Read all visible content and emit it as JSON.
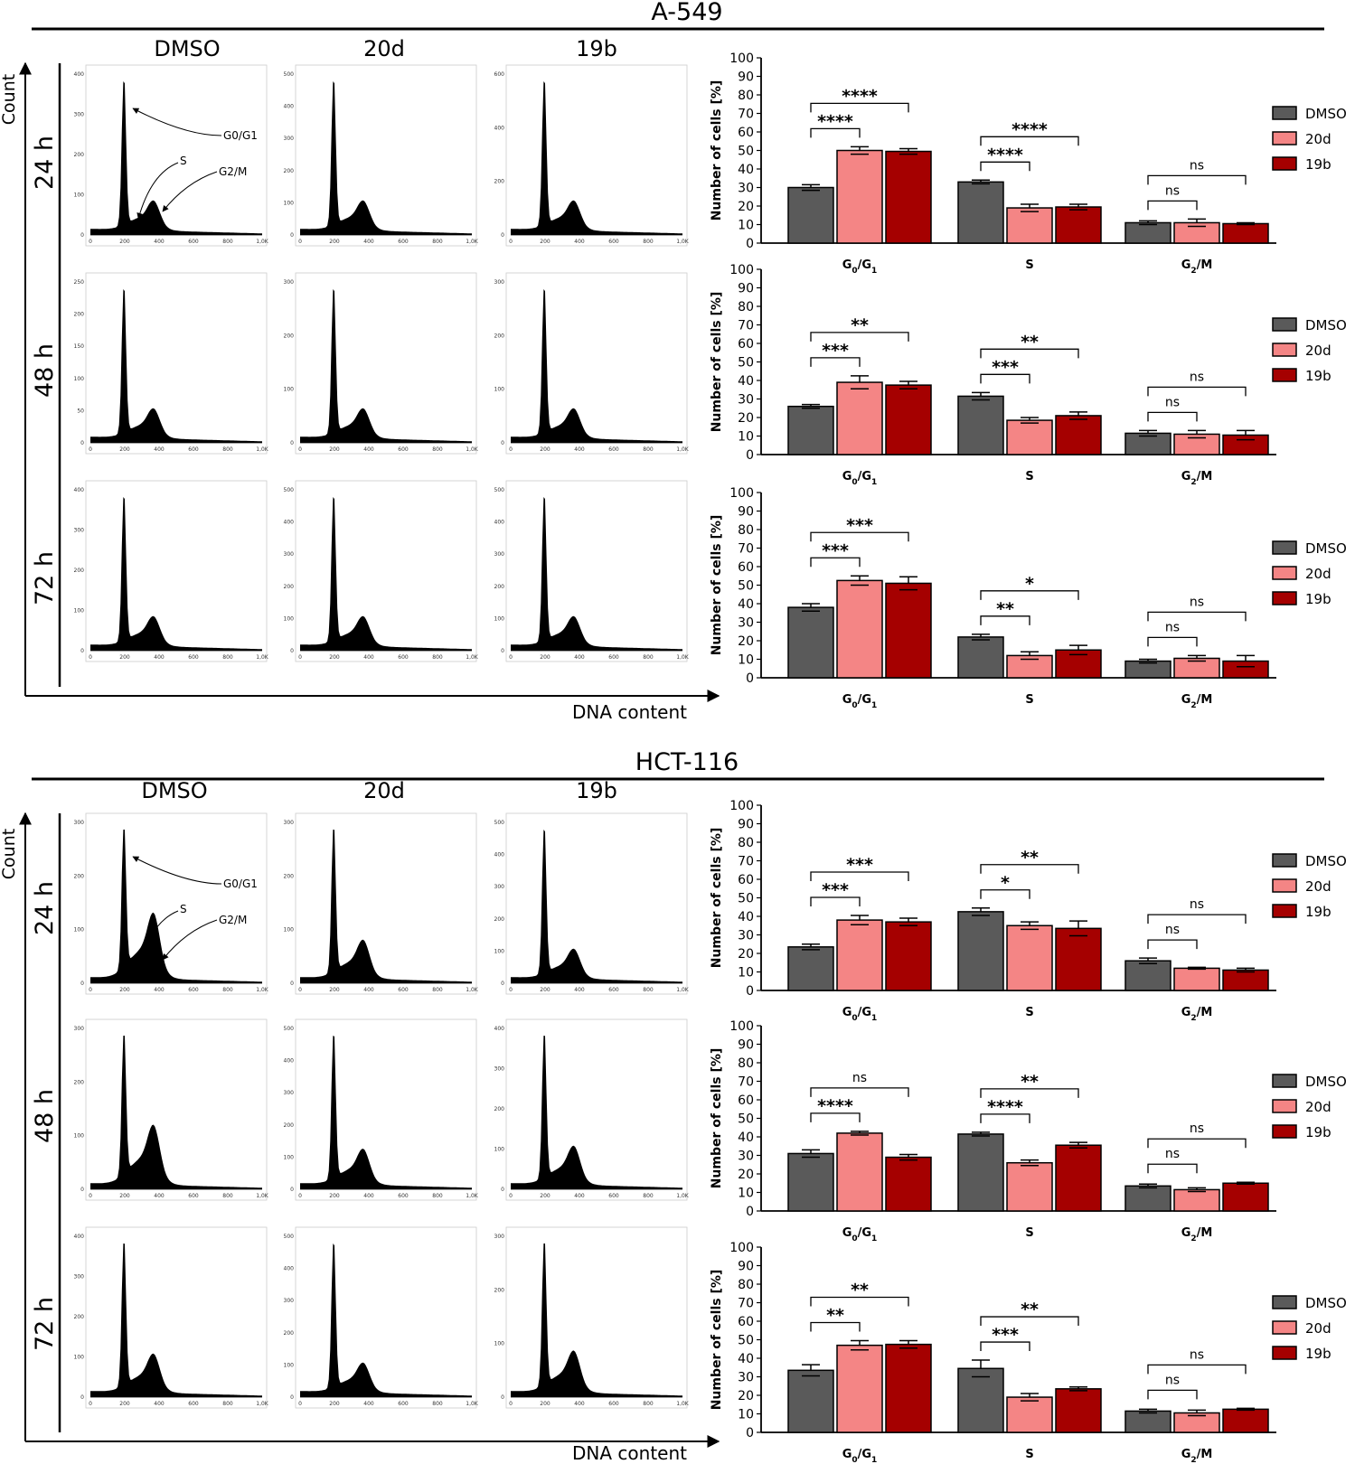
{
  "colors": {
    "DMSO": "#5a5a5a",
    "20d": "#f48585",
    "19b": "#a50000"
  },
  "histo_axis": {
    "y_label": "Count",
    "x_label": "DNA content",
    "x_ticks": [
      "0",
      "200",
      "400",
      "600",
      "800",
      "1,0K"
    ],
    "peak_labels": {
      "g0g1": "G0/G1",
      "s": "S",
      "g2m": "G2/M"
    }
  },
  "sections": [
    {
      "title": "A-549",
      "columns": [
        "DMSO",
        "20d",
        "19b"
      ],
      "rows": [
        {
          "time": "24 h",
          "yticks": [
            [
              "0",
              "100",
              "200",
              "300",
              "400"
            ],
            [
              "0",
              "100",
              "200",
              "300",
              "400",
              "500"
            ],
            [
              "0",
              "200",
              "400",
              "600"
            ]
          ],
          "g2_scale": [
            1.0,
            1.0,
            1.0
          ]
        },
        {
          "time": "48 h",
          "yticks": [
            [
              "0",
              "50",
              "100",
              "150",
              "200",
              "250"
            ],
            [
              "0",
              "100",
              "200",
              "300"
            ],
            [
              "0",
              "100",
              "200",
              "300"
            ]
          ],
          "g2_scale": [
            1.0,
            1.0,
            1.0
          ]
        },
        {
          "time": "72 h",
          "yticks": [
            [
              "0",
              "100",
              "200",
              "300",
              "400"
            ],
            [
              "0",
              "100",
              "200",
              "300",
              "400",
              "500"
            ],
            [
              "0",
              "100",
              "200",
              "300",
              "400",
              "500"
            ]
          ],
          "g2_scale": [
            1.0,
            1.0,
            1.0
          ]
        }
      ]
    },
    {
      "title": "HCT-116",
      "columns": [
        "DMSO",
        "20d",
        "19b"
      ],
      "rows": [
        {
          "time": "24 h",
          "yticks": [
            [
              "0",
              "100",
              "200",
              "300"
            ],
            [
              "0",
              "100",
              "200",
              "300"
            ],
            [
              "0",
              "100",
              "200",
              "300",
              "400",
              "500"
            ]
          ],
          "g2_scale": [
            2.2,
            1.3,
            1.0
          ]
        },
        {
          "time": "48 h",
          "yticks": [
            [
              "0",
              "100",
              "200",
              "300"
            ],
            [
              "0",
              "100",
              "200",
              "300",
              "400",
              "500"
            ],
            [
              "0",
              "100",
              "200",
              "300",
              "400"
            ]
          ],
          "g2_scale": [
            2.0,
            1.2,
            1.3
          ]
        },
        {
          "time": "72 h",
          "yticks": [
            [
              "0",
              "100",
              "200",
              "300",
              "400"
            ],
            [
              "0",
              "100",
              "200",
              "300",
              "400",
              "500"
            ],
            [
              "0",
              "100",
              "200",
              "300"
            ]
          ],
          "g2_scale": [
            1.3,
            1.0,
            1.4
          ]
        }
      ]
    }
  ],
  "chart_data": [
    {
      "id": "a549_24h",
      "type": "bar",
      "ylabel": "Number of cells [%]",
      "ylim": [
        0,
        100
      ],
      "categories": [
        "G0/G1",
        "S",
        "G2/M"
      ],
      "series": [
        {
          "name": "DMSO",
          "values": [
            30,
            33,
            11
          ],
          "err": [
            1.5,
            1,
            1
          ]
        },
        {
          "name": "20d",
          "values": [
            50,
            19,
            11
          ],
          "err": [
            2,
            2,
            2
          ]
        },
        {
          "name": "19b",
          "values": [
            49.5,
            19.5,
            10.5
          ],
          "err": [
            1.5,
            1.5,
            0.5
          ]
        }
      ],
      "sig": [
        {
          "g": 0,
          "a": 0,
          "b": 1,
          "label": "****"
        },
        {
          "g": 0,
          "a": 0,
          "b": 2,
          "label": "****"
        },
        {
          "g": 1,
          "a": 0,
          "b": 1,
          "label": "****"
        },
        {
          "g": 1,
          "a": 0,
          "b": 2,
          "label": "****"
        },
        {
          "g": 2,
          "a": 0,
          "b": 1,
          "label": "ns"
        },
        {
          "g": 2,
          "a": 0,
          "b": 2,
          "label": "ns"
        }
      ]
    },
    {
      "id": "a549_48h",
      "type": "bar",
      "ylabel": "Number of cells [%]",
      "ylim": [
        0,
        100
      ],
      "categories": [
        "G0/G1",
        "S",
        "G2/M"
      ],
      "series": [
        {
          "name": "DMSO",
          "values": [
            26,
            31.5,
            11.5
          ],
          "err": [
            1,
            2,
            1.5
          ]
        },
        {
          "name": "20d",
          "values": [
            39,
            18.5,
            11
          ],
          "err": [
            3.5,
            1.5,
            2
          ]
        },
        {
          "name": "19b",
          "values": [
            37.5,
            21,
            10.5
          ],
          "err": [
            2,
            2,
            2.5
          ]
        }
      ],
      "sig": [
        {
          "g": 0,
          "a": 0,
          "b": 1,
          "label": "***"
        },
        {
          "g": 0,
          "a": 0,
          "b": 2,
          "label": "**"
        },
        {
          "g": 1,
          "a": 0,
          "b": 1,
          "label": "***"
        },
        {
          "g": 1,
          "a": 0,
          "b": 2,
          "label": "**"
        },
        {
          "g": 2,
          "a": 0,
          "b": 1,
          "label": "ns"
        },
        {
          "g": 2,
          "a": 0,
          "b": 2,
          "label": "ns"
        }
      ]
    },
    {
      "id": "a549_72h",
      "type": "bar",
      "ylabel": "Number of cells [%]",
      "ylim": [
        0,
        100
      ],
      "categories": [
        "G0/G1",
        "S",
        "G2/M"
      ],
      "series": [
        {
          "name": "DMSO",
          "values": [
            38,
            22,
            9
          ],
          "err": [
            2,
            1.5,
            1
          ]
        },
        {
          "name": "20d",
          "values": [
            52.5,
            12,
            10.5
          ],
          "err": [
            2.5,
            2,
            1.5
          ]
        },
        {
          "name": "19b",
          "values": [
            51,
            15,
            9
          ],
          "err": [
            3.5,
            2.5,
            3
          ]
        }
      ],
      "sig": [
        {
          "g": 0,
          "a": 0,
          "b": 1,
          "label": "***"
        },
        {
          "g": 0,
          "a": 0,
          "b": 2,
          "label": "***"
        },
        {
          "g": 1,
          "a": 0,
          "b": 1,
          "label": "**"
        },
        {
          "g": 1,
          "a": 0,
          "b": 2,
          "label": "*"
        },
        {
          "g": 2,
          "a": 0,
          "b": 1,
          "label": "ns"
        },
        {
          "g": 2,
          "a": 0,
          "b": 2,
          "label": "ns"
        }
      ]
    },
    {
      "id": "hct_24h",
      "type": "bar",
      "ylabel": "Number of cells [%]",
      "ylim": [
        0,
        100
      ],
      "categories": [
        "G0/G1",
        "S",
        "G2/M"
      ],
      "series": [
        {
          "name": "DMSO",
          "values": [
            23.5,
            42.5,
            16
          ],
          "err": [
            1.5,
            2,
            1.5
          ]
        },
        {
          "name": "20d",
          "values": [
            38,
            35,
            12
          ],
          "err": [
            2.5,
            2,
            0.5
          ]
        },
        {
          "name": "19b",
          "values": [
            37,
            33.5,
            11
          ],
          "err": [
            2,
            4,
            1
          ]
        }
      ],
      "sig": [
        {
          "g": 0,
          "a": 0,
          "b": 1,
          "label": "***"
        },
        {
          "g": 0,
          "a": 0,
          "b": 2,
          "label": "***"
        },
        {
          "g": 1,
          "a": 0,
          "b": 1,
          "label": "*"
        },
        {
          "g": 1,
          "a": 0,
          "b": 2,
          "label": "**"
        },
        {
          "g": 2,
          "a": 0,
          "b": 1,
          "label": "ns"
        },
        {
          "g": 2,
          "a": 0,
          "b": 2,
          "label": "ns"
        }
      ]
    },
    {
      "id": "hct_48h",
      "type": "bar",
      "ylabel": "Number of cells [%]",
      "ylim": [
        0,
        100
      ],
      "categories": [
        "G0/G1",
        "S",
        "G2/M"
      ],
      "series": [
        {
          "name": "DMSO",
          "values": [
            31,
            41.5,
            13.5
          ],
          "err": [
            2,
            1,
            1
          ]
        },
        {
          "name": "20d",
          "values": [
            42,
            26,
            11.5
          ],
          "err": [
            1,
            1.5,
            1
          ]
        },
        {
          "name": "19b",
          "values": [
            29,
            35.5,
            15
          ],
          "err": [
            1.5,
            1.5,
            0.5
          ]
        }
      ],
      "sig": [
        {
          "g": 0,
          "a": 0,
          "b": 1,
          "label": "****"
        },
        {
          "g": 0,
          "a": 0,
          "b": 2,
          "label": "ns"
        },
        {
          "g": 1,
          "a": 0,
          "b": 1,
          "label": "****"
        },
        {
          "g": 1,
          "a": 0,
          "b": 2,
          "label": "**"
        },
        {
          "g": 2,
          "a": 0,
          "b": 1,
          "label": "ns"
        },
        {
          "g": 2,
          "a": 0,
          "b": 2,
          "label": "ns"
        }
      ]
    },
    {
      "id": "hct_72h",
      "type": "bar",
      "ylabel": "Number of cells [%]",
      "ylim": [
        0,
        100
      ],
      "categories": [
        "G0/G1",
        "S",
        "G2/M"
      ],
      "series": [
        {
          "name": "DMSO",
          "values": [
            33.5,
            34.5,
            11.5
          ],
          "err": [
            3,
            4.5,
            1
          ]
        },
        {
          "name": "20d",
          "values": [
            47,
            19,
            10.5
          ],
          "err": [
            2.5,
            2,
            1.5
          ]
        },
        {
          "name": "19b",
          "values": [
            47.5,
            23.5,
            12.5
          ],
          "err": [
            2,
            1,
            0.5
          ]
        }
      ],
      "sig": [
        {
          "g": 0,
          "a": 0,
          "b": 1,
          "label": "**"
        },
        {
          "g": 0,
          "a": 0,
          "b": 2,
          "label": "**"
        },
        {
          "g": 1,
          "a": 0,
          "b": 1,
          "label": "***"
        },
        {
          "g": 1,
          "a": 0,
          "b": 2,
          "label": "**"
        },
        {
          "g": 2,
          "a": 0,
          "b": 1,
          "label": "ns"
        },
        {
          "g": 2,
          "a": 0,
          "b": 2,
          "label": "ns"
        }
      ]
    }
  ]
}
